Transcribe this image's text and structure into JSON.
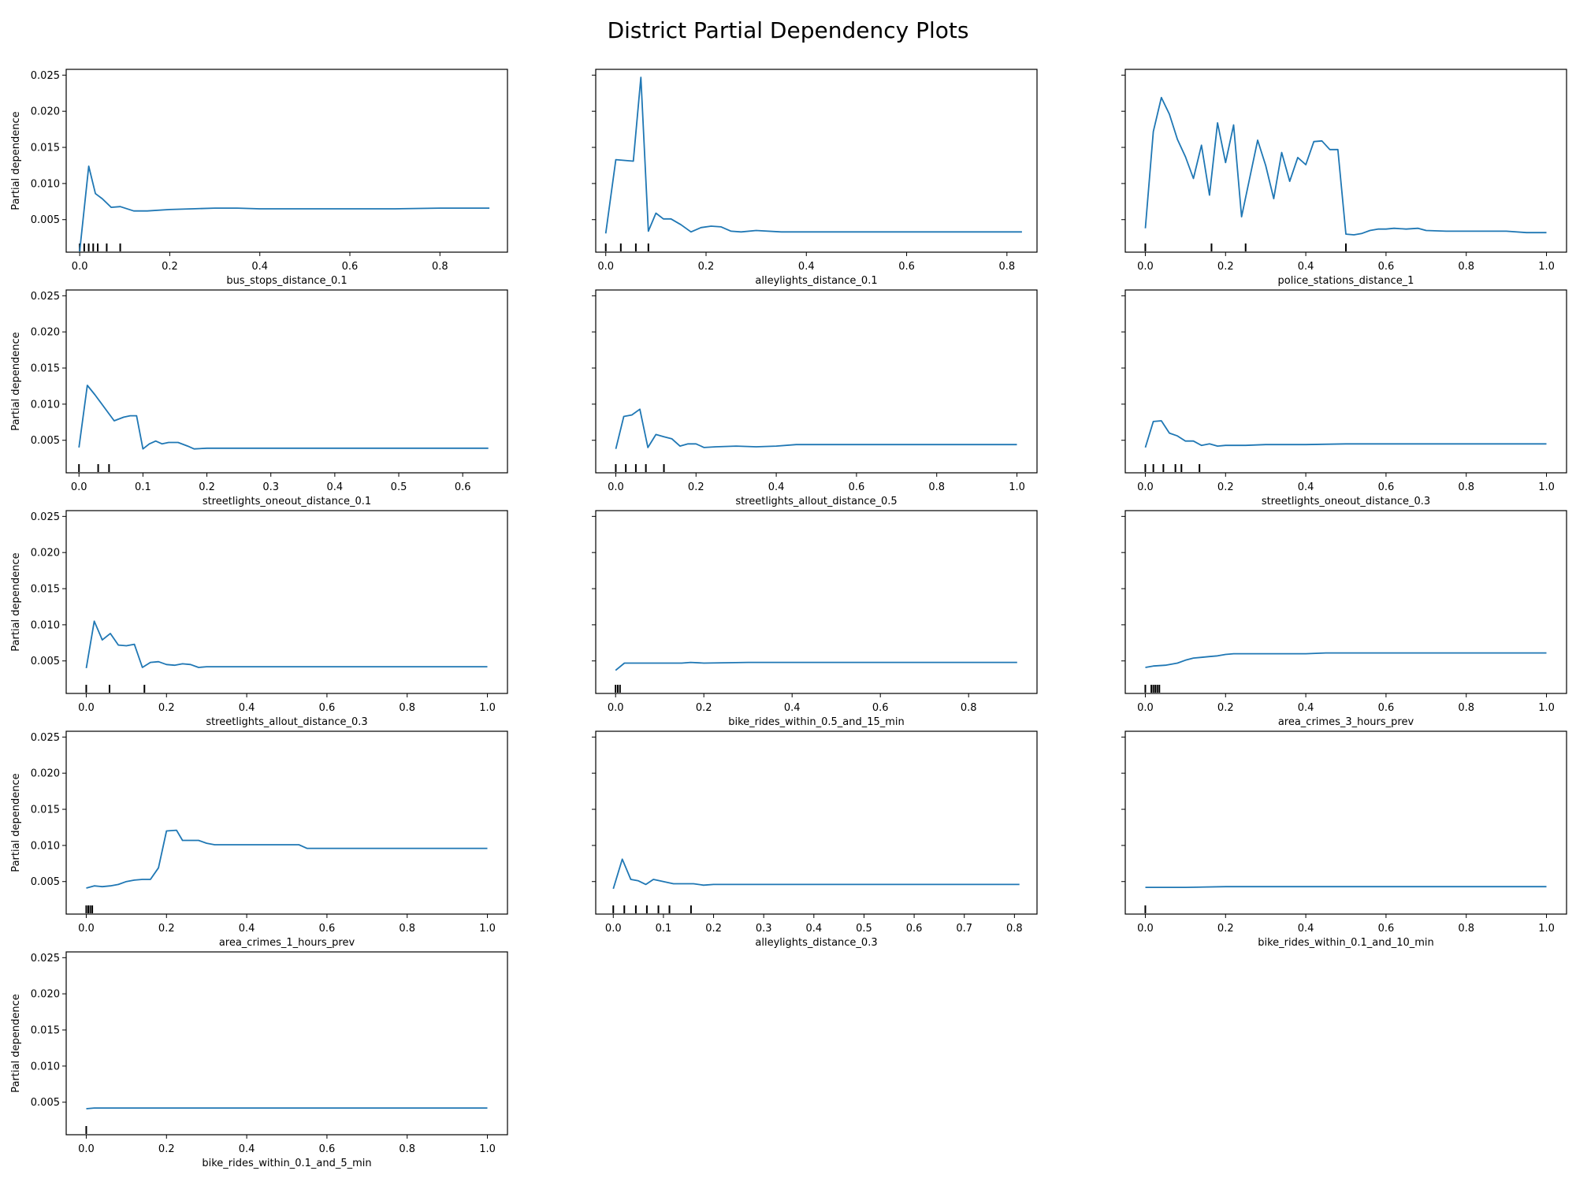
{
  "figure": {
    "title": "District Partial Dependency Plots",
    "line_color": "#1f77b4",
    "rug_color": "#000000"
  },
  "chart_data": [
    {
      "type": "line",
      "title": "",
      "xlabel": "bus_stops_distance_0.1",
      "ylabel": "Partial dependence",
      "xlim": [
        -0.03,
        0.95
      ],
      "ylim": [
        0.0005,
        0.0258
      ],
      "xticks": [
        0.0,
        0.2,
        0.4,
        0.6,
        0.8
      ],
      "xtick_labels": [
        "0.0",
        "0.2",
        "0.4",
        "0.6",
        "0.8"
      ],
      "yticks": [
        0.005,
        0.01,
        0.015,
        0.02,
        0.025
      ],
      "ytick_labels": [
        "0.005",
        "0.010",
        "0.015",
        "0.020",
        "0.025"
      ],
      "show_yticklabels": true,
      "x": [
        0.0,
        0.02,
        0.035,
        0.05,
        0.07,
        0.09,
        0.12,
        0.15,
        0.2,
        0.25,
        0.3,
        0.35,
        0.4,
        0.45,
        0.5,
        0.55,
        0.6,
        0.7,
        0.8,
        0.91
      ],
      "y": [
        0.0006,
        0.0124,
        0.0086,
        0.0079,
        0.0067,
        0.0068,
        0.0062,
        0.0062,
        0.0064,
        0.0065,
        0.0066,
        0.0066,
        0.0065,
        0.0065,
        0.0065,
        0.0065,
        0.0065,
        0.0065,
        0.0066,
        0.0066
      ],
      "rug": [
        0.0,
        0.01,
        0.02,
        0.03,
        0.04,
        0.06,
        0.09
      ]
    },
    {
      "type": "line",
      "title": "",
      "xlabel": "alleylights_distance_0.1",
      "ylabel": "",
      "xlim": [
        -0.02,
        0.86
      ],
      "ylim": [
        0.0005,
        0.0258
      ],
      "xticks": [
        0.0,
        0.2,
        0.4,
        0.6,
        0.8
      ],
      "xtick_labels": [
        "0.0",
        "0.2",
        "0.4",
        "0.6",
        "0.8"
      ],
      "yticks": [
        0.005,
        0.01,
        0.015,
        0.02,
        0.025
      ],
      "ytick_labels": [
        "0.005",
        "0.010",
        "0.015",
        "0.020",
        "0.025"
      ],
      "show_yticklabels": false,
      "x": [
        0.0,
        0.02,
        0.055,
        0.07,
        0.085,
        0.1,
        0.115,
        0.13,
        0.15,
        0.17,
        0.19,
        0.21,
        0.23,
        0.25,
        0.27,
        0.3,
        0.35,
        0.4,
        0.5,
        0.6,
        0.7,
        0.83
      ],
      "y": [
        0.0031,
        0.0133,
        0.0131,
        0.0247,
        0.0034,
        0.0059,
        0.0051,
        0.0051,
        0.0043,
        0.0033,
        0.0039,
        0.0041,
        0.004,
        0.0034,
        0.0033,
        0.0035,
        0.0033,
        0.0033,
        0.0033,
        0.0033,
        0.0033,
        0.0033
      ],
      "rug": [
        0.0,
        0.03,
        0.06,
        0.085
      ]
    },
    {
      "type": "line",
      "title": "",
      "xlabel": "police_stations_distance_1",
      "ylabel": "",
      "xlim": [
        -0.05,
        1.05
      ],
      "ylim": [
        0.0005,
        0.0258
      ],
      "xticks": [
        0.0,
        0.2,
        0.4,
        0.6,
        0.8,
        1.0
      ],
      "xtick_labels": [
        "0.0",
        "0.2",
        "0.4",
        "0.6",
        "0.8",
        "1.0"
      ],
      "yticks": [
        0.005,
        0.01,
        0.015,
        0.02,
        0.025
      ],
      "ytick_labels": [
        "0.005",
        "0.010",
        "0.015",
        "0.020",
        "0.025"
      ],
      "show_yticklabels": false,
      "x": [
        0.0,
        0.02,
        0.04,
        0.06,
        0.08,
        0.1,
        0.12,
        0.14,
        0.16,
        0.18,
        0.2,
        0.22,
        0.24,
        0.26,
        0.28,
        0.3,
        0.32,
        0.34,
        0.36,
        0.38,
        0.4,
        0.42,
        0.44,
        0.46,
        0.48,
        0.5,
        0.52,
        0.54,
        0.56,
        0.58,
        0.6,
        0.62,
        0.65,
        0.68,
        0.7,
        0.75,
        0.8,
        0.85,
        0.9,
        0.95,
        1.0
      ],
      "y": [
        0.0038,
        0.0172,
        0.0219,
        0.0196,
        0.0161,
        0.0137,
        0.0107,
        0.0153,
        0.0084,
        0.0184,
        0.0129,
        0.0181,
        0.0054,
        0.0107,
        0.016,
        0.0125,
        0.0079,
        0.0143,
        0.0103,
        0.0136,
        0.0126,
        0.0158,
        0.0159,
        0.0147,
        0.0147,
        0.003,
        0.0029,
        0.0031,
        0.0035,
        0.0037,
        0.0037,
        0.0038,
        0.0037,
        0.0038,
        0.0035,
        0.0034,
        0.0034,
        0.0034,
        0.0034,
        0.0032,
        0.0032
      ],
      "rug": [
        0.0,
        0.165,
        0.25,
        0.5
      ]
    },
    {
      "type": "line",
      "title": "",
      "xlabel": "streetlights_oneout_distance_0.1",
      "ylabel": "Partial dependence",
      "xlim": [
        -0.02,
        0.67
      ],
      "ylim": [
        0.0005,
        0.0258
      ],
      "xticks": [
        0.0,
        0.1,
        0.2,
        0.3,
        0.4,
        0.5,
        0.6
      ],
      "xtick_labels": [
        "0.0",
        "0.1",
        "0.2",
        "0.3",
        "0.4",
        "0.5",
        "0.6"
      ],
      "yticks": [
        0.005,
        0.01,
        0.015,
        0.02,
        0.025
      ],
      "ytick_labels": [
        "0.005",
        "0.010",
        "0.015",
        "0.020",
        "0.025"
      ],
      "show_yticklabels": true,
      "x": [
        0.0,
        0.013,
        0.025,
        0.04,
        0.055,
        0.07,
        0.08,
        0.09,
        0.1,
        0.11,
        0.12,
        0.13,
        0.14,
        0.155,
        0.17,
        0.18,
        0.2,
        0.25,
        0.3,
        0.4,
        0.5,
        0.64
      ],
      "y": [
        0.004,
        0.0126,
        0.0113,
        0.0095,
        0.0077,
        0.0082,
        0.0084,
        0.0084,
        0.0038,
        0.0045,
        0.0049,
        0.0045,
        0.0047,
        0.0047,
        0.0042,
        0.0038,
        0.0039,
        0.0039,
        0.0039,
        0.0039,
        0.0039,
        0.0039
      ],
      "rug": [
        0.0,
        0.03,
        0.047
      ]
    },
    {
      "type": "line",
      "title": "",
      "xlabel": "streetlights_allout_distance_0.5",
      "ylabel": "",
      "xlim": [
        -0.05,
        1.05
      ],
      "ylim": [
        0.0005,
        0.0258
      ],
      "xticks": [
        0.0,
        0.2,
        0.4,
        0.6,
        0.8,
        1.0
      ],
      "xtick_labels": [
        "0.0",
        "0.2",
        "0.4",
        "0.6",
        "0.8",
        "1.0"
      ],
      "yticks": [
        0.005,
        0.01,
        0.015,
        0.02,
        0.025
      ],
      "ytick_labels": [
        "0.005",
        "0.010",
        "0.015",
        "0.020",
        "0.025"
      ],
      "show_yticklabels": false,
      "x": [
        0.0,
        0.02,
        0.04,
        0.06,
        0.08,
        0.1,
        0.12,
        0.14,
        0.16,
        0.18,
        0.2,
        0.22,
        0.25,
        0.3,
        0.35,
        0.4,
        0.45,
        0.5,
        0.6,
        0.7,
        0.8,
        0.9,
        1.0
      ],
      "y": [
        0.0038,
        0.0083,
        0.0085,
        0.0093,
        0.004,
        0.0058,
        0.0055,
        0.0052,
        0.0042,
        0.0045,
        0.0045,
        0.004,
        0.0041,
        0.0042,
        0.0041,
        0.0042,
        0.0044,
        0.0044,
        0.0044,
        0.0044,
        0.0044,
        0.0044,
        0.0044
      ],
      "rug": [
        0.0,
        0.025,
        0.05,
        0.075,
        0.12
      ]
    },
    {
      "type": "line",
      "title": "",
      "xlabel": "streetlights_oneout_distance_0.3",
      "ylabel": "",
      "xlim": [
        -0.05,
        1.05
      ],
      "ylim": [
        0.0005,
        0.0258
      ],
      "xticks": [
        0.0,
        0.2,
        0.4,
        0.6,
        0.8,
        1.0
      ],
      "xtick_labels": [
        "0.0",
        "0.2",
        "0.4",
        "0.6",
        "0.8",
        "1.0"
      ],
      "yticks": [
        0.005,
        0.01,
        0.015,
        0.02,
        0.025
      ],
      "ytick_labels": [
        "0.005",
        "0.010",
        "0.015",
        "0.020",
        "0.025"
      ],
      "show_yticklabels": false,
      "x": [
        0.0,
        0.02,
        0.04,
        0.06,
        0.08,
        0.1,
        0.12,
        0.14,
        0.16,
        0.18,
        0.2,
        0.25,
        0.3,
        0.4,
        0.5,
        0.6,
        0.8,
        1.0
      ],
      "y": [
        0.004,
        0.0076,
        0.0077,
        0.006,
        0.0056,
        0.0049,
        0.0049,
        0.0043,
        0.0045,
        0.0042,
        0.0043,
        0.0043,
        0.0044,
        0.0044,
        0.0045,
        0.0045,
        0.0045,
        0.0045
      ],
      "rug": [
        0.0,
        0.02,
        0.045,
        0.075,
        0.09,
        0.135
      ]
    },
    {
      "type": "line",
      "title": "",
      "xlabel": "streetlights_allout_distance_0.3",
      "ylabel": "Partial dependence",
      "xlim": [
        -0.05,
        1.05
      ],
      "ylim": [
        0.0005,
        0.0258
      ],
      "xticks": [
        0.0,
        0.2,
        0.4,
        0.6,
        0.8,
        1.0
      ],
      "xtick_labels": [
        "0.0",
        "0.2",
        "0.4",
        "0.6",
        "0.8",
        "1.0"
      ],
      "yticks": [
        0.005,
        0.01,
        0.015,
        0.02,
        0.025
      ],
      "ytick_labels": [
        "0.005",
        "0.010",
        "0.015",
        "0.020",
        "0.025"
      ],
      "show_yticklabels": true,
      "x": [
        0.0,
        0.02,
        0.04,
        0.06,
        0.08,
        0.1,
        0.12,
        0.14,
        0.16,
        0.18,
        0.2,
        0.22,
        0.24,
        0.26,
        0.28,
        0.3,
        0.35,
        0.4,
        0.5,
        0.6,
        0.8,
        1.0
      ],
      "y": [
        0.004,
        0.0105,
        0.0079,
        0.0088,
        0.0072,
        0.0071,
        0.0073,
        0.0041,
        0.0048,
        0.0049,
        0.0045,
        0.0044,
        0.0046,
        0.0045,
        0.0041,
        0.0042,
        0.0042,
        0.0042,
        0.0042,
        0.0042,
        0.0042,
        0.0042
      ],
      "rug": [
        0.0,
        0.058,
        0.145
      ]
    },
    {
      "type": "line",
      "title": "",
      "xlabel": "bike_rides_within_0.5_and_15_min",
      "ylabel": "",
      "xlim": [
        -0.045,
        0.955
      ],
      "ylim": [
        0.0005,
        0.0258
      ],
      "xticks": [
        0.0,
        0.2,
        0.4,
        0.6,
        0.8
      ],
      "xtick_labels": [
        "0.0",
        "0.2",
        "0.4",
        "0.6",
        "0.8"
      ],
      "yticks": [
        0.005,
        0.01,
        0.015,
        0.02,
        0.025
      ],
      "ytick_labels": [
        "0.005",
        "0.010",
        "0.015",
        "0.020",
        "0.025"
      ],
      "show_yticklabels": false,
      "x": [
        0.0,
        0.02,
        0.05,
        0.1,
        0.15,
        0.17,
        0.2,
        0.3,
        0.4,
        0.5,
        0.6,
        0.7,
        0.8,
        0.91
      ],
      "y": [
        0.0037,
        0.0047,
        0.0047,
        0.0047,
        0.0047,
        0.0048,
        0.0047,
        0.0048,
        0.0048,
        0.0048,
        0.0048,
        0.0048,
        0.0048,
        0.0048
      ],
      "rug": [
        0.0,
        0.005,
        0.01
      ]
    },
    {
      "type": "line",
      "title": "",
      "xlabel": "area_crimes_3_hours_prev",
      "ylabel": "",
      "xlim": [
        -0.05,
        1.05
      ],
      "ylim": [
        0.0005,
        0.0258
      ],
      "xticks": [
        0.0,
        0.2,
        0.4,
        0.6,
        0.8,
        1.0
      ],
      "xtick_labels": [
        "0.0",
        "0.2",
        "0.4",
        "0.6",
        "0.8",
        "1.0"
      ],
      "yticks": [
        0.005,
        0.01,
        0.015,
        0.02,
        0.025
      ],
      "ytick_labels": [
        "0.005",
        "0.010",
        "0.015",
        "0.020",
        "0.025"
      ],
      "show_yticklabels": false,
      "x": [
        0.0,
        0.02,
        0.05,
        0.08,
        0.1,
        0.12,
        0.14,
        0.16,
        0.18,
        0.2,
        0.22,
        0.25,
        0.3,
        0.35,
        0.4,
        0.45,
        0.5,
        0.6,
        0.7,
        0.8,
        0.9,
        1.0
      ],
      "y": [
        0.0041,
        0.0043,
        0.0044,
        0.0047,
        0.0051,
        0.0054,
        0.0055,
        0.0056,
        0.0057,
        0.0059,
        0.006,
        0.006,
        0.006,
        0.006,
        0.006,
        0.0061,
        0.0061,
        0.0061,
        0.0061,
        0.0061,
        0.0061,
        0.0061
      ],
      "rug": [
        0.0,
        0.015,
        0.02,
        0.025,
        0.03,
        0.035
      ]
    },
    {
      "type": "line",
      "title": "",
      "xlabel": "area_crimes_1_hours_prev",
      "ylabel": "Partial dependence",
      "xlim": [
        -0.05,
        1.05
      ],
      "ylim": [
        0.0005,
        0.0258
      ],
      "xticks": [
        0.0,
        0.2,
        0.4,
        0.6,
        0.8,
        1.0
      ],
      "xtick_labels": [
        "0.0",
        "0.2",
        "0.4",
        "0.6",
        "0.8",
        "1.0"
      ],
      "yticks": [
        0.005,
        0.01,
        0.015,
        0.02,
        0.025
      ],
      "ytick_labels": [
        "0.005",
        "0.010",
        "0.015",
        "0.020",
        "0.025"
      ],
      "show_yticklabels": true,
      "x": [
        0.0,
        0.02,
        0.04,
        0.06,
        0.08,
        0.1,
        0.12,
        0.14,
        0.16,
        0.18,
        0.2,
        0.225,
        0.24,
        0.26,
        0.28,
        0.3,
        0.32,
        0.35,
        0.4,
        0.45,
        0.5,
        0.53,
        0.55,
        0.6,
        0.7,
        0.8,
        0.9,
        1.0
      ],
      "y": [
        0.0041,
        0.0044,
        0.0043,
        0.0044,
        0.0046,
        0.005,
        0.0052,
        0.0053,
        0.0053,
        0.0069,
        0.012,
        0.0121,
        0.0107,
        0.0107,
        0.0107,
        0.0103,
        0.0101,
        0.0101,
        0.0101,
        0.0101,
        0.0101,
        0.0101,
        0.0096,
        0.0096,
        0.0096,
        0.0096,
        0.0096,
        0.0096
      ],
      "rug": [
        0.0,
        0.005,
        0.01,
        0.015
      ]
    },
    {
      "type": "line",
      "title": "",
      "xlabel": "alleylights_distance_0.3",
      "ylabel": "",
      "xlim": [
        -0.035,
        0.845
      ],
      "ylim": [
        0.0005,
        0.0258
      ],
      "xticks": [
        0.0,
        0.1,
        0.2,
        0.3,
        0.4,
        0.5,
        0.6,
        0.7,
        0.8
      ],
      "xtick_labels": [
        "0.0",
        "0.1",
        "0.2",
        "0.3",
        "0.4",
        "0.5",
        "0.6",
        "0.7",
        "0.8"
      ],
      "yticks": [
        0.005,
        0.01,
        0.015,
        0.02,
        0.025
      ],
      "ytick_labels": [
        "0.005",
        "0.010",
        "0.015",
        "0.020",
        "0.025"
      ],
      "show_yticklabels": false,
      "x": [
        0.0,
        0.018,
        0.035,
        0.05,
        0.065,
        0.08,
        0.1,
        0.12,
        0.14,
        0.16,
        0.18,
        0.2,
        0.25,
        0.3,
        0.35,
        0.4,
        0.5,
        0.6,
        0.7,
        0.81
      ],
      "y": [
        0.004,
        0.0081,
        0.0053,
        0.0051,
        0.0046,
        0.0053,
        0.005,
        0.0047,
        0.0047,
        0.0047,
        0.0045,
        0.0046,
        0.0046,
        0.0046,
        0.0046,
        0.0046,
        0.0046,
        0.0046,
        0.0046,
        0.0046
      ],
      "rug": [
        0.0,
        0.022,
        0.045,
        0.067,
        0.09,
        0.112,
        0.155
      ]
    },
    {
      "type": "line",
      "title": "",
      "xlabel": "bike_rides_within_0.1_and_10_min",
      "ylabel": "",
      "xlim": [
        -0.05,
        1.05
      ],
      "ylim": [
        0.0005,
        0.0258
      ],
      "xticks": [
        0.0,
        0.2,
        0.4,
        0.6,
        0.8,
        1.0
      ],
      "xtick_labels": [
        "0.0",
        "0.2",
        "0.4",
        "0.6",
        "0.8",
        "1.0"
      ],
      "yticks": [
        0.005,
        0.01,
        0.015,
        0.02,
        0.025
      ],
      "ytick_labels": [
        "0.005",
        "0.010",
        "0.015",
        "0.020",
        "0.025"
      ],
      "show_yticklabels": false,
      "x": [
        0.0,
        0.1,
        0.2,
        0.4,
        0.6,
        0.8,
        1.0
      ],
      "y": [
        0.0042,
        0.0042,
        0.0043,
        0.0043,
        0.0043,
        0.0043,
        0.0043
      ],
      "rug": [
        0.0
      ]
    },
    {
      "type": "line",
      "title": "",
      "xlabel": "bike_rides_within_0.1_and_5_min",
      "ylabel": "Partial dependence",
      "xlim": [
        -0.05,
        1.05
      ],
      "ylim": [
        0.0005,
        0.0258
      ],
      "xticks": [
        0.0,
        0.2,
        0.4,
        0.6,
        0.8,
        1.0
      ],
      "xtick_labels": [
        "0.0",
        "0.2",
        "0.4",
        "0.6",
        "0.8",
        "1.0"
      ],
      "yticks": [
        0.005,
        0.01,
        0.015,
        0.02,
        0.025
      ],
      "ytick_labels": [
        "0.005",
        "0.010",
        "0.015",
        "0.020",
        "0.025"
      ],
      "show_yticklabels": true,
      "x": [
        0.0,
        0.02,
        0.05,
        0.1,
        0.15,
        0.2,
        0.4,
        0.6,
        0.8,
        1.0
      ],
      "y": [
        0.0041,
        0.0042,
        0.0042,
        0.0042,
        0.0042,
        0.0042,
        0.0042,
        0.0042,
        0.0042,
        0.0042
      ],
      "rug": [
        0.0
      ]
    }
  ]
}
